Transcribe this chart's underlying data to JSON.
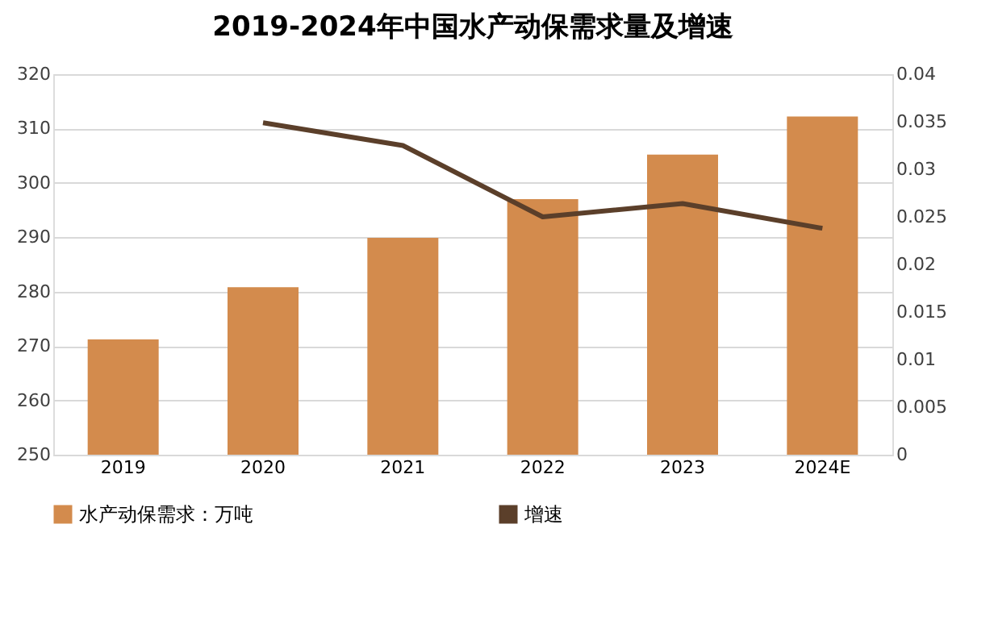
{
  "chart_data": {
    "type": "bar",
    "title": "2019-2024年中国水产动保需求量及增速",
    "categories": [
      "2019",
      "2020",
      "2021",
      "2022",
      "2023",
      "2024E"
    ],
    "series": [
      {
        "name": "水产动保需求：万吨",
        "color": "#d38b4d",
        "values": [
          271.2,
          280.8,
          289.9,
          297.0,
          305.2,
          312.2
        ]
      },
      {
        "name": "增速",
        "type": "line",
        "axis": "y2",
        "color": "#5b3f2a",
        "values": [
          null,
          0.0349,
          0.0325,
          0.025,
          0.0264,
          0.0238
        ]
      }
    ],
    "ylim": [
      250,
      320
    ],
    "yticks": [
      250,
      260,
      270,
      280,
      290,
      300,
      310,
      320
    ],
    "y2lim": [
      0,
      0.04
    ],
    "y2ticks": [
      0,
      0.005,
      0.01,
      0.015,
      0.02,
      0.025,
      0.03,
      0.035,
      0.04
    ],
    "grid": "y",
    "legend": "bottom",
    "line_style": "solid",
    "marker": "none"
  }
}
